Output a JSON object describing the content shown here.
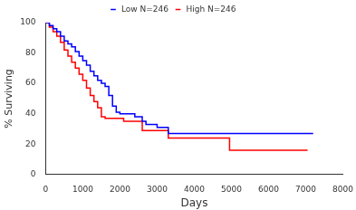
{
  "chart_data": {
    "type": "line",
    "x_label": "Days",
    "y_label": "% Surviving",
    "xlim": [
      0,
      8000
    ],
    "xticks": [
      0,
      1000,
      2000,
      3000,
      4000,
      5000,
      6000,
      7000,
      8000
    ],
    "ylim": [
      0,
      100
    ],
    "yticks": [
      0,
      20,
      40,
      60,
      80,
      100
    ],
    "grid": false,
    "legend": "top",
    "line_style": "step",
    "series": [
      {
        "name": "Low N=246",
        "color": "#0000ff",
        "x": [
          0,
          100,
          200,
          300,
          400,
          500,
          600,
          700,
          800,
          900,
          1000,
          1100,
          1200,
          1300,
          1400,
          1500,
          1600,
          1700,
          1800,
          1900,
          2000,
          2400,
          2600,
          2700,
          3000,
          3300,
          7200
        ],
        "values": [
          100,
          98,
          96,
          94,
          91,
          88,
          86,
          84,
          81,
          78,
          75,
          72,
          68,
          65,
          62,
          60,
          58,
          52,
          45,
          41,
          40,
          38,
          35,
          33,
          31,
          27,
          27
        ]
      },
      {
        "name": "High N=246",
        "color": "#ff0000",
        "x": [
          0,
          100,
          200,
          300,
          400,
          500,
          600,
          700,
          800,
          900,
          1000,
          1100,
          1200,
          1300,
          1400,
          1500,
          1600,
          2100,
          2600,
          3300,
          4950,
          7050
        ],
        "values": [
          100,
          97,
          94,
          91,
          87,
          82,
          78,
          74,
          70,
          66,
          62,
          57,
          52,
          48,
          44,
          38,
          37,
          35,
          29,
          24,
          16,
          16
        ]
      }
    ]
  }
}
